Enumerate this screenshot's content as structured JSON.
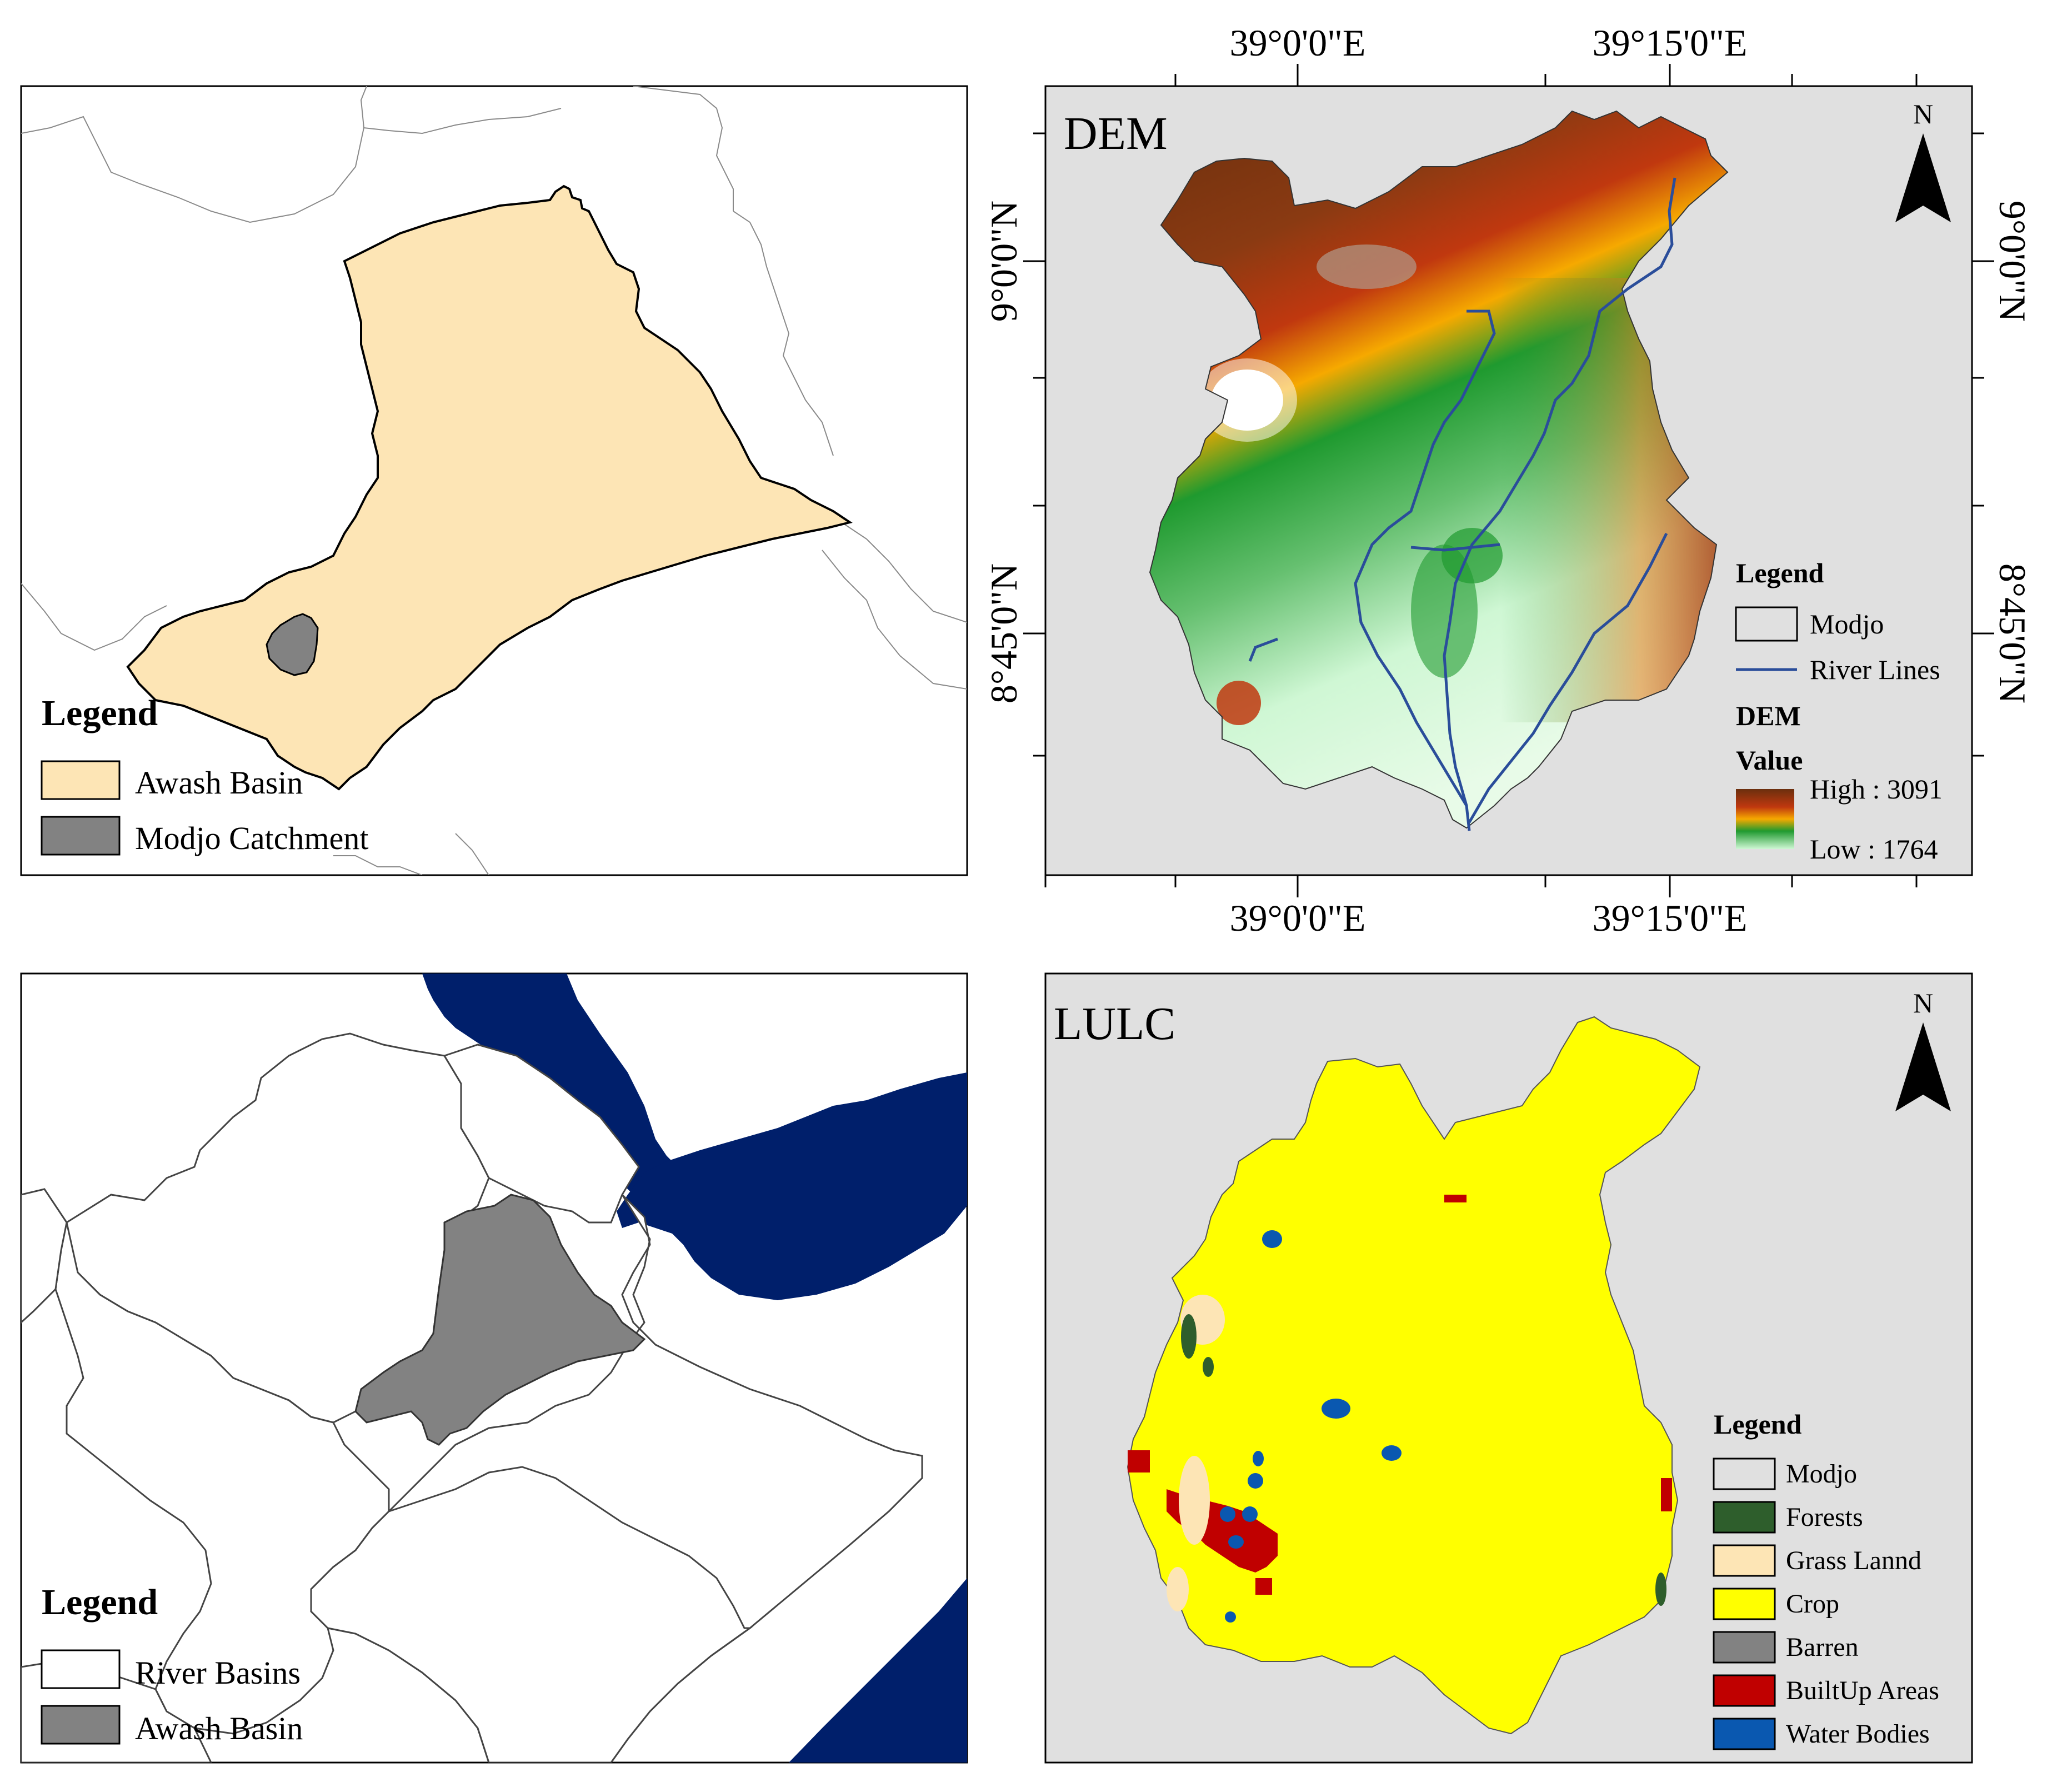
{
  "panels": {
    "top_left": {
      "legend_title": "Legend",
      "legend_items": [
        {
          "label": "Awash Basin",
          "color": "#fde5b5"
        },
        {
          "label": "Modjo Catchment",
          "color": "#828282"
        }
      ]
    },
    "top_right": {
      "title": "DEM",
      "north_label": "N",
      "axis_labels": {
        "top": [
          "39°0'0\"E",
          "39°15'0\"E"
        ],
        "bottom": [
          "39°0'0\"E",
          "39°15'0\"E"
        ],
        "left": [
          "9°0'0\"N",
          "8°45'0\"N"
        ],
        "right": [
          "9°0'0\"N",
          "8°45'0\"N"
        ]
      },
      "legend_title": "Legend",
      "legend_items": [
        {
          "label": "Modjo",
          "type": "box"
        },
        {
          "label": "River Lines",
          "type": "line",
          "color": "#2a4d9a"
        }
      ],
      "dem_title": "DEM",
      "value_title": "Value",
      "high_label": "High : 3091",
      "low_label": "Low : 1764",
      "colors": {
        "high": "#6b2f0e",
        "mid_red": "#c0380f",
        "mid_yellow": "#f6a900",
        "green": "#1f9a2f",
        "low": "#cff7d4",
        "river": "#2a4d9a",
        "background": "#e0e0e0"
      }
    },
    "bottom_left": {
      "legend_title": "Legend",
      "legend_items": [
        {
          "label": "River Basins",
          "color": "#ffffff"
        },
        {
          "label": "Awash Basin",
          "color": "#828282"
        }
      ],
      "colors": {
        "sea": "#001f6b"
      }
    },
    "bottom_right": {
      "title": "LULC",
      "north_label": "N",
      "legend_title": "Legend",
      "legend_items": [
        {
          "label": "Modjo",
          "color": "#e0e0e0"
        },
        {
          "label": "Forests",
          "color": "#2e5e2c"
        },
        {
          "label": "Grass Lannd",
          "color": "#fde5b5"
        },
        {
          "label": "Crop",
          "color": "#ffff00"
        },
        {
          "label": "Barren",
          "color": "#828282"
        },
        {
          "label": "BuiltUp Areas",
          "color": "#c00000"
        },
        {
          "label": "Water Bodies",
          "color": "#0a58b0"
        }
      ]
    }
  }
}
